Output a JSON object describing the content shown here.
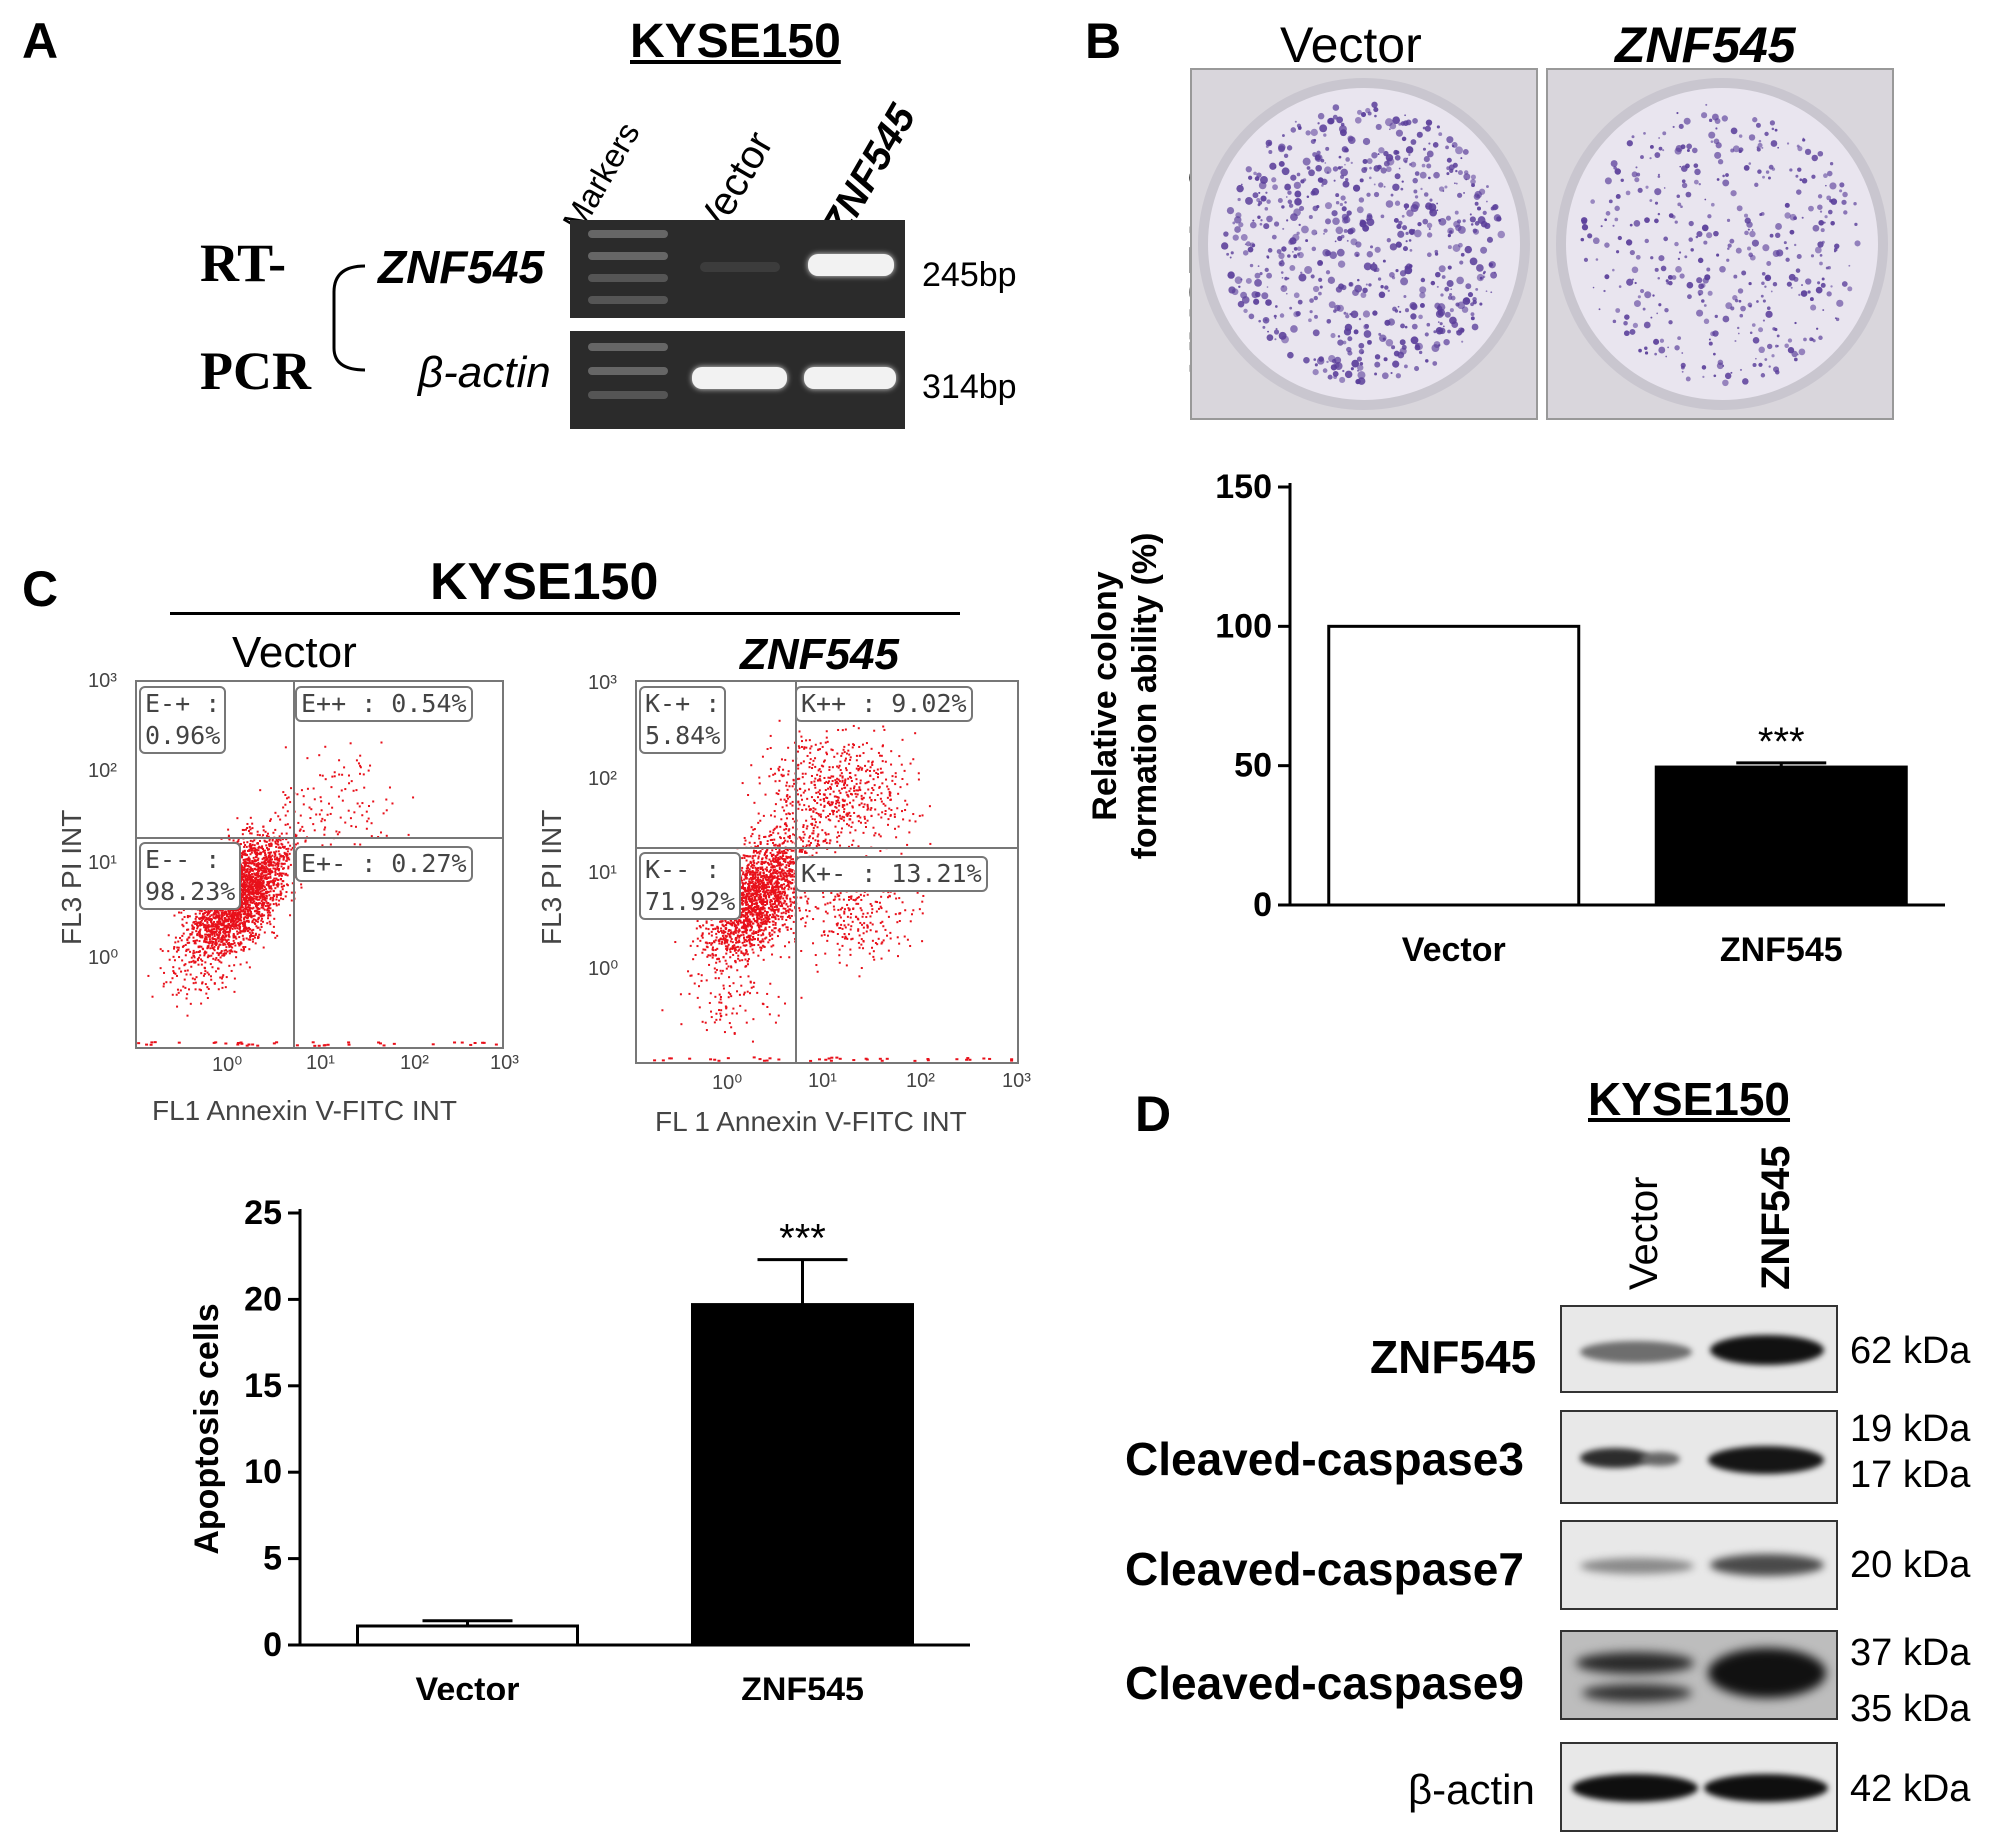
{
  "panels": {
    "a": {
      "letter": "A",
      "cell_line": "KYSE150",
      "lanes": [
        "Markers",
        "Vector",
        "ZNF545"
      ],
      "rtpcr_top": "RT-",
      "rtpcr_bottom": "PCR",
      "genes": [
        "ZNF545",
        "β-actin"
      ],
      "sizes": [
        "245bp",
        "314bp"
      ]
    },
    "b": {
      "letter": "B",
      "plate_labels": [
        "Vector",
        "ZNF545"
      ],
      "cell_line": "KYSE150"
    },
    "c": {
      "letter": "C",
      "cell_line": "KYSE150",
      "vector": {
        "title": "Vector",
        "quadrants": [
          "E-+ :",
          "0.96%",
          "E++ : 0.54%",
          "E-- :",
          "98.23%",
          "E+- : 0.27%"
        ],
        "ylabel": "FL3 PI INT",
        "xlabel": "FL1 Annexin V-FITC INT",
        "yticks": [
          "10³",
          "10²",
          "10¹",
          "10⁰"
        ],
        "xticks": [
          "10⁰",
          "10¹",
          "10²",
          "10³"
        ]
      },
      "znf": {
        "title": "ZNF545",
        "quadrants": [
          "K-+ :",
          "5.84%",
          "K++ : 9.02%",
          "K-- :",
          "71.92%",
          "K+- : 13.21%"
        ],
        "ylabel": "FL3 PI INT",
        "xlabel": "FL 1 Annexin V-FITC INT",
        "yticks": [
          "10³",
          "10²",
          "10¹",
          "10⁰"
        ],
        "xticks": [
          "10⁰",
          "10¹",
          "10²",
          "10³"
        ]
      }
    },
    "d": {
      "letter": "D",
      "cell_line": "KYSE150",
      "lanes": [
        "Vector",
        "ZNF545"
      ],
      "proteins": [
        "ZNF545",
        "Cleaved-caspase3",
        "Cleaved-caspase7",
        "Cleaved-caspase9",
        "β-actin"
      ],
      "sizes": [
        "62 kDa",
        "19 kDa",
        "17 kDa",
        "20 kDa",
        "37 kDa",
        "35 kDa",
        "42 kDa"
      ]
    }
  },
  "chart_data": [
    {
      "type": "bar",
      "categories": [
        "Vector",
        "ZNF545"
      ],
      "values": [
        100,
        49.5
      ],
      "errors": [
        0,
        1.5
      ],
      "ylabel": "Relative colony formation ability (%)",
      "ylim": [
        0,
        150
      ],
      "yticks": [
        0,
        50,
        100,
        150
      ],
      "significance": [
        "",
        "***"
      ],
      "fills": [
        "#ffffff",
        "#000000"
      ]
    },
    {
      "type": "bar",
      "categories": [
        "Vector",
        "ZNF545"
      ],
      "values": [
        1.1,
        19.7
      ],
      "errors": [
        0.3,
        2.6
      ],
      "ylabel": "Apoptosis cells",
      "ylim": [
        0,
        25
      ],
      "yticks": [
        0,
        5,
        10,
        15,
        20,
        25
      ],
      "significance": [
        "",
        "***"
      ],
      "fills": [
        "#ffffff",
        "#000000"
      ]
    }
  ]
}
